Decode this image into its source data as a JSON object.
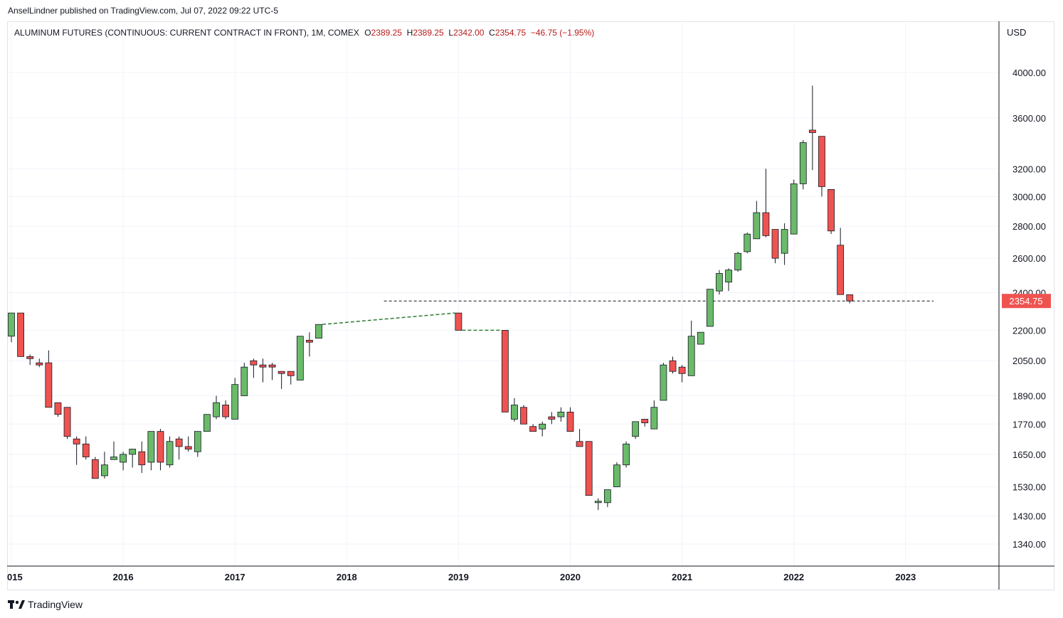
{
  "header": {
    "published_by": "AnselLindner published on TradingView.com, Jul 07, 2022 09:22 UTC-5"
  },
  "legend": {
    "title": "ALUMINUM FUTURES (CONTINUOUS: CURRENT CONTRACT IN FRONT), 1M, COMEX",
    "open_label": "O",
    "open": "2389.25",
    "high_label": "H",
    "high": "2389.25",
    "low_label": "L",
    "low": "2342.00",
    "close_label": "C",
    "close": "2354.75",
    "change": "−46.75 (−1.95%)"
  },
  "footer": {
    "brand": "TradingView"
  },
  "colors": {
    "up": "#26a69a",
    "up_fill": "#6aba6a",
    "down_fill": "#ef5350",
    "last_price_bg": "#ef5350",
    "grid": "#f0f3fa",
    "axis_text": "#131722"
  },
  "chart_data": {
    "type": "candlestick",
    "currency": "USD",
    "y_scale": "log",
    "ylim": [
      1280,
      4300
    ],
    "y_ticks": [
      4000,
      3600,
      3200,
      3000,
      2800,
      2600,
      2400,
      2200,
      2050,
      1890,
      1770,
      1650,
      1530,
      1430,
      1340
    ],
    "y_tick_labels": [
      "4000.00",
      "3600.00",
      "3200.00",
      "3000.00",
      "2800.00",
      "2600.00",
      "2400.00",
      "2200.00",
      "2050.00",
      "1890.00",
      "1770.00",
      "1650.00",
      "1530.00",
      "1430.00",
      "1340.00"
    ],
    "x_ticks": [
      "015",
      "2016",
      "2017",
      "2018",
      "2019",
      "2020",
      "2021",
      "2022",
      "2023"
    ],
    "x_tick_dates": [
      "2015-01",
      "2016-01",
      "2017-01",
      "2018-01",
      "2019-01",
      "2020-01",
      "2021-01",
      "2022-01",
      "2023-01"
    ],
    "x_range": [
      "2015-01",
      "2023-10"
    ],
    "last_price": 2354.75,
    "last_price_label": "2354.75",
    "price_line": 2354.75,
    "candles": [
      {
        "date": "2015-01",
        "o": 2170,
        "h": 2290,
        "l": 2140,
        "c": 2290
      },
      {
        "date": "2015-02",
        "o": 2290,
        "h": 2290,
        "l": 2070,
        "c": 2070
      },
      {
        "date": "2015-03",
        "o": 2070,
        "h": 2080,
        "l": 2030,
        "c": 2060
      },
      {
        "date": "2015-04",
        "o": 2040,
        "h": 2060,
        "l": 2020,
        "c": 2030
      },
      {
        "date": "2015-05",
        "o": 2040,
        "h": 2100,
        "l": 1840,
        "c": 1840
      },
      {
        "date": "2015-06",
        "o": 1860,
        "h": 1860,
        "l": 1800,
        "c": 1810
      },
      {
        "date": "2015-07",
        "o": 1840,
        "h": 1840,
        "l": 1710,
        "c": 1720
      },
      {
        "date": "2015-08",
        "o": 1710,
        "h": 1720,
        "l": 1610,
        "c": 1690
      },
      {
        "date": "2015-09",
        "o": 1690,
        "h": 1720,
        "l": 1630,
        "c": 1640
      },
      {
        "date": "2015-10",
        "o": 1630,
        "h": 1640,
        "l": 1560,
        "c": 1560
      },
      {
        "date": "2015-11",
        "o": 1570,
        "h": 1660,
        "l": 1560,
        "c": 1610
      },
      {
        "date": "2015-12",
        "o": 1630,
        "h": 1700,
        "l": 1630,
        "c": 1640
      },
      {
        "date": "2016-01",
        "o": 1620,
        "h": 1660,
        "l": 1590,
        "c": 1650
      },
      {
        "date": "2016-02",
        "o": 1650,
        "h": 1670,
        "l": 1600,
        "c": 1670
      },
      {
        "date": "2016-03",
        "o": 1660,
        "h": 1700,
        "l": 1580,
        "c": 1610
      },
      {
        "date": "2016-04",
        "o": 1620,
        "h": 1740,
        "l": 1590,
        "c": 1740
      },
      {
        "date": "2016-05",
        "o": 1740,
        "h": 1750,
        "l": 1590,
        "c": 1620
      },
      {
        "date": "2016-06",
        "o": 1610,
        "h": 1720,
        "l": 1600,
        "c": 1700
      },
      {
        "date": "2016-07",
        "o": 1710,
        "h": 1720,
        "l": 1630,
        "c": 1680
      },
      {
        "date": "2016-08",
        "o": 1680,
        "h": 1720,
        "l": 1660,
        "c": 1670
      },
      {
        "date": "2016-09",
        "o": 1660,
        "h": 1740,
        "l": 1640,
        "c": 1740
      },
      {
        "date": "2016-10",
        "o": 1740,
        "h": 1810,
        "l": 1740,
        "c": 1810
      },
      {
        "date": "2016-11",
        "o": 1800,
        "h": 1890,
        "l": 1790,
        "c": 1860
      },
      {
        "date": "2016-12",
        "o": 1850,
        "h": 1870,
        "l": 1790,
        "c": 1800
      },
      {
        "date": "2017-01",
        "o": 1790,
        "h": 1970,
        "l": 1790,
        "c": 1940
      },
      {
        "date": "2017-02",
        "o": 1890,
        "h": 2040,
        "l": 1890,
        "c": 2020
      },
      {
        "date": "2017-03",
        "o": 2050,
        "h": 2060,
        "l": 1970,
        "c": 2030
      },
      {
        "date": "2017-04",
        "o": 2030,
        "h": 2060,
        "l": 1950,
        "c": 2020
      },
      {
        "date": "2017-05",
        "o": 2030,
        "h": 2040,
        "l": 1960,
        "c": 2020
      },
      {
        "date": "2017-06",
        "o": 2000,
        "h": 2000,
        "l": 1920,
        "c": 1990
      },
      {
        "date": "2017-07",
        "o": 2000,
        "h": 2000,
        "l": 1940,
        "c": 1980
      },
      {
        "date": "2017-08",
        "o": 1960,
        "h": 2170,
        "l": 1960,
        "c": 2170
      },
      {
        "date": "2017-09",
        "o": 2150,
        "h": 2190,
        "l": 2070,
        "c": 2140
      },
      {
        "date": "2017-10",
        "o": 2160,
        "h": 2230,
        "l": 2160,
        "c": 2230
      },
      {
        "date": "2019-01",
        "o": 2290,
        "h": 2290,
        "l": 2200,
        "c": 2200
      },
      {
        "date": "2019-06",
        "o": 2200,
        "h": 2200,
        "l": 1820,
        "c": 1820
      },
      {
        "date": "2019-07",
        "o": 1790,
        "h": 1880,
        "l": 1780,
        "c": 1850
      },
      {
        "date": "2019-08",
        "o": 1840,
        "h": 1850,
        "l": 1770,
        "c": 1770
      },
      {
        "date": "2019-09",
        "o": 1760,
        "h": 1770,
        "l": 1740,
        "c": 1740
      },
      {
        "date": "2019-10",
        "o": 1750,
        "h": 1780,
        "l": 1720,
        "c": 1770
      },
      {
        "date": "2019-11",
        "o": 1800,
        "h": 1820,
        "l": 1770,
        "c": 1790
      },
      {
        "date": "2019-12",
        "o": 1800,
        "h": 1840,
        "l": 1780,
        "c": 1820
      },
      {
        "date": "2020-01",
        "o": 1820,
        "h": 1840,
        "l": 1740,
        "c": 1740
      },
      {
        "date": "2020-02",
        "o": 1700,
        "h": 1750,
        "l": 1680,
        "c": 1680
      },
      {
        "date": "2020-03",
        "o": 1700,
        "h": 1700,
        "l": 1500,
        "c": 1500
      },
      {
        "date": "2020-04",
        "o": 1475,
        "h": 1490,
        "l": 1450,
        "c": 1480
      },
      {
        "date": "2020-05",
        "o": 1475,
        "h": 1520,
        "l": 1460,
        "c": 1520
      },
      {
        "date": "2020-06",
        "o": 1530,
        "h": 1620,
        "l": 1530,
        "c": 1610
      },
      {
        "date": "2020-07",
        "o": 1610,
        "h": 1700,
        "l": 1600,
        "c": 1690
      },
      {
        "date": "2020-08",
        "o": 1720,
        "h": 1780,
        "l": 1710,
        "c": 1780
      },
      {
        "date": "2020-09",
        "o": 1790,
        "h": 1790,
        "l": 1760,
        "c": 1775
      },
      {
        "date": "2020-10",
        "o": 1750,
        "h": 1870,
        "l": 1750,
        "c": 1840
      },
      {
        "date": "2020-11",
        "o": 1870,
        "h": 2040,
        "l": 1870,
        "c": 2030
      },
      {
        "date": "2020-12",
        "o": 2050,
        "h": 2070,
        "l": 1990,
        "c": 2000
      },
      {
        "date": "2021-01",
        "o": 2020,
        "h": 2030,
        "l": 1950,
        "c": 1990
      },
      {
        "date": "2021-02",
        "o": 1980,
        "h": 2250,
        "l": 1980,
        "c": 2170
      },
      {
        "date": "2021-03",
        "o": 2130,
        "h": 2190,
        "l": 2130,
        "c": 2190
      },
      {
        "date": "2021-04",
        "o": 2220,
        "h": 2420,
        "l": 2220,
        "c": 2420
      },
      {
        "date": "2021-05",
        "o": 2410,
        "h": 2530,
        "l": 2390,
        "c": 2510
      },
      {
        "date": "2021-06",
        "o": 2460,
        "h": 2540,
        "l": 2410,
        "c": 2530
      },
      {
        "date": "2021-07",
        "o": 2530,
        "h": 2640,
        "l": 2520,
        "c": 2630
      },
      {
        "date": "2021-08",
        "o": 2640,
        "h": 2760,
        "l": 2630,
        "c": 2750
      },
      {
        "date": "2021-09",
        "o": 2720,
        "h": 2970,
        "l": 2720,
        "c": 2890
      },
      {
        "date": "2021-10",
        "o": 2890,
        "h": 3200,
        "l": 2730,
        "c": 2740
      },
      {
        "date": "2021-11",
        "o": 2780,
        "h": 2780,
        "l": 2570,
        "c": 2600
      },
      {
        "date": "2021-12",
        "o": 2630,
        "h": 2820,
        "l": 2560,
        "c": 2780
      },
      {
        "date": "2022-01",
        "o": 2750,
        "h": 3120,
        "l": 2750,
        "c": 3090
      },
      {
        "date": "2022-02",
        "o": 3090,
        "h": 3420,
        "l": 3050,
        "c": 3400
      },
      {
        "date": "2022-03",
        "o": 3500,
        "h": 3880,
        "l": 3190,
        "c": 3480
      },
      {
        "date": "2022-04",
        "o": 3450,
        "h": 3450,
        "l": 3000,
        "c": 3070
      },
      {
        "date": "2022-05",
        "o": 3050,
        "h": 3050,
        "l": 2750,
        "c": 2770
      },
      {
        "date": "2022-06",
        "o": 2680,
        "h": 2790,
        "l": 2390,
        "c": 2390
      },
      {
        "date": "2022-07",
        "o": 2389.25,
        "h": 2389.25,
        "l": 2342.0,
        "c": 2354.75
      }
    ],
    "gap_segments": [
      {
        "start": "2017-10",
        "end": "2019-01",
        "from": 2230,
        "to": 2290
      },
      {
        "start": "2019-01",
        "end": "2019-06",
        "from": 2200,
        "to": 2200
      }
    ]
  }
}
